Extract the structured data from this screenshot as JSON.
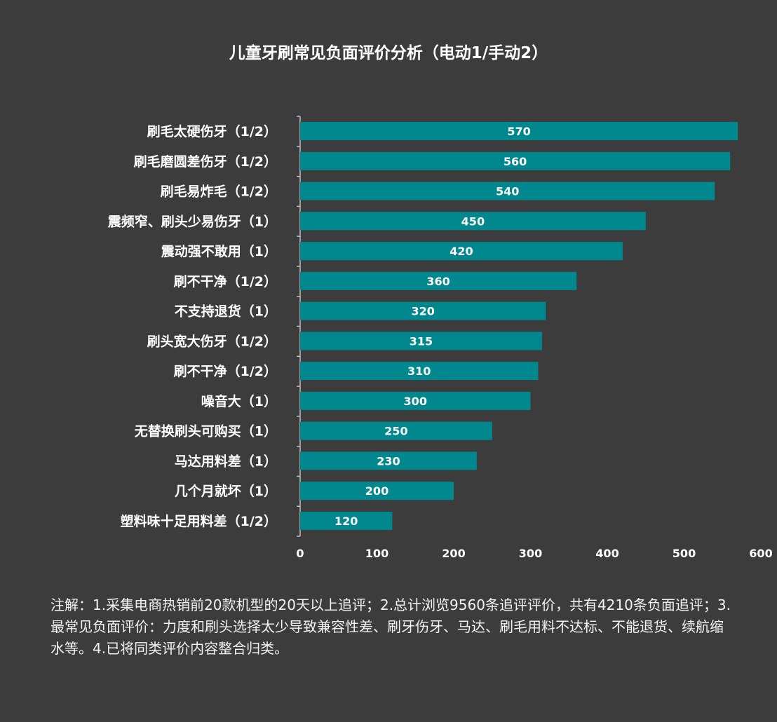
{
  "chart_data": {
    "type": "bar",
    "orientation": "horizontal",
    "title": "儿童牙刷常见负面评价分析（电动1/手动2）",
    "categories": [
      "刷毛太硬伤牙（1/2）",
      "刷毛磨圆差伤牙（1/2）",
      "刷毛易炸毛（1/2）",
      "震频窄、刷头少易伤牙（1）",
      "震动强不敢用（1）",
      "刷不干净（1/2）",
      "不支持退货（1）",
      "刷头宽大伤牙（1/2）",
      "刷不干净（1/2）",
      "噪音大（1）",
      "无替换刷头可购买（1）",
      "马达用料差（1）",
      "几个月就坏（1）",
      "塑料味十足用料差（1/2）"
    ],
    "values": [
      570,
      560,
      540,
      450,
      420,
      360,
      320,
      315,
      310,
      300,
      250,
      230,
      200,
      120
    ],
    "xlim": [
      0,
      600
    ],
    "xticks": [
      "0",
      "100",
      "200",
      "300",
      "400",
      "500",
      "600"
    ],
    "grid": false,
    "bar_color": "#00888e",
    "data_labels": true
  },
  "note": "注解：1.采集电商热销前20款机型的20天以上追评；2.总计浏览9560条追评评价，共有4210条负面追评；3.最常见负面评价：力度和刷头选择太少导致兼容性差、刷牙伤牙、马达、刷毛用料不达标、不能退货、续航缩水等。4.已将同类评价内容整合归类。"
}
